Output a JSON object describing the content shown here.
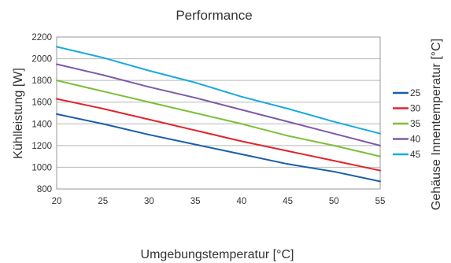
{
  "chart_data": {
    "type": "line",
    "title": "Performance",
    "xlabel": "Umgebungstemperatur [°C]",
    "ylabel": "Kühlleistung [W]",
    "legend_title": "Gehäuse Innentemperatur [°C]",
    "legend_position": "right",
    "grid": "horizontal",
    "x": [
      20,
      25,
      30,
      35,
      40,
      45,
      50,
      55
    ],
    "x_ticks": [
      "20",
      "25",
      "30",
      "35",
      "40",
      "45",
      "50",
      "55"
    ],
    "y_ticks": [
      "800",
      "1000",
      "1200",
      "1400",
      "1600",
      "1800",
      "2000",
      "2200"
    ],
    "xlim": [
      20,
      55
    ],
    "ylim": [
      800,
      2200
    ],
    "series": [
      {
        "name": "25",
        "color": "#1a5ea8",
        "values": [
          1490,
          1400,
          1300,
          1210,
          1120,
          1030,
          960,
          870
        ]
      },
      {
        "name": "30",
        "color": "#e0252b",
        "values": [
          1630,
          1540,
          1440,
          1340,
          1240,
          1150,
          1060,
          970
        ]
      },
      {
        "name": "35",
        "color": "#7bbf3a",
        "values": [
          1800,
          1700,
          1600,
          1500,
          1400,
          1290,
          1200,
          1100
        ]
      },
      {
        "name": "40",
        "color": "#7e5ba7",
        "values": [
          1950,
          1850,
          1740,
          1640,
          1530,
          1420,
          1310,
          1200
        ]
      },
      {
        "name": "45",
        "color": "#1aa9e1",
        "values": [
          2110,
          2010,
          1890,
          1780,
          1650,
          1540,
          1420,
          1310
        ]
      }
    ]
  }
}
